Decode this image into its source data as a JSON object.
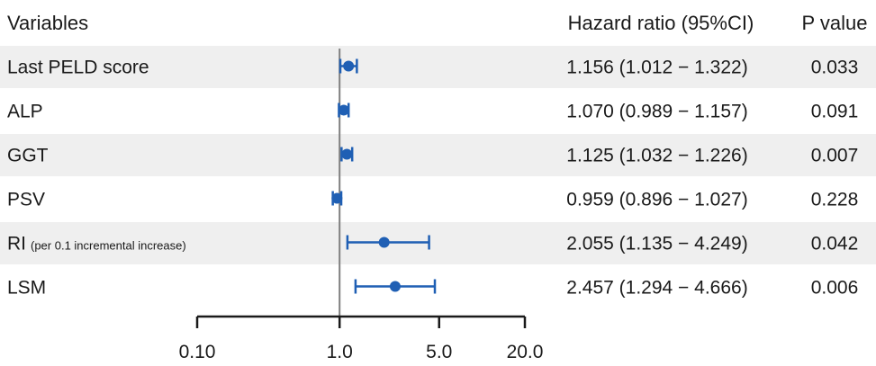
{
  "header": {
    "variables": "Variables",
    "hazard_ratio": "Hazard ratio (95%CI)",
    "p_value": "P value"
  },
  "rows": [
    {
      "label": "Last PELD score",
      "note": "",
      "hr_text": "1.156 (1.012 − 1.322)",
      "p_text": "0.033"
    },
    {
      "label": "ALP",
      "note": "",
      "hr_text": "1.070 (0.989 − 1.157)",
      "p_text": "0.091"
    },
    {
      "label": "GGT",
      "note": "",
      "hr_text": "1.125 (1.032 − 1.226)",
      "p_text": "0.007"
    },
    {
      "label": "PSV",
      "note": "",
      "hr_text": "0.959 (0.896 − 1.027)",
      "p_text": "0.228"
    },
    {
      "label": "RI",
      "note": "(per 0.1 incremental increase)",
      "hr_text": "2.055 (1.135 − 4.249)",
      "p_text": "0.042"
    },
    {
      "label": "LSM",
      "note": "",
      "hr_text": "2.457 (1.294 − 4.666)",
      "p_text": "0.006"
    }
  ],
  "colors": {
    "point": "#1f5fb4",
    "band": "#efefef",
    "reference_line": "#7f7f7f",
    "axis": "#1a1a1a"
  },
  "chart_data": {
    "type": "forest",
    "x_scale": "log",
    "reference_value": 1.0,
    "xlim": [
      0.1,
      20.0
    ],
    "xticks": [
      0.1,
      1.0,
      5.0,
      20.0
    ],
    "xtick_labels": [
      "0.10",
      "1.0",
      "5.0",
      "20.0"
    ],
    "categories": [
      "Last PELD score",
      "ALP",
      "GGT",
      "PSV",
      "RI",
      "LSM"
    ],
    "estimates": [
      1.156,
      1.07,
      1.125,
      0.959,
      2.055,
      2.457
    ],
    "ci_lower": [
      1.012,
      0.989,
      1.032,
      0.896,
      1.135,
      1.294
    ],
    "ci_upper": [
      1.322,
      1.157,
      1.226,
      1.027,
      4.249,
      4.666
    ],
    "p_values": [
      0.033,
      0.091,
      0.007,
      0.228,
      0.042,
      0.006
    ]
  }
}
